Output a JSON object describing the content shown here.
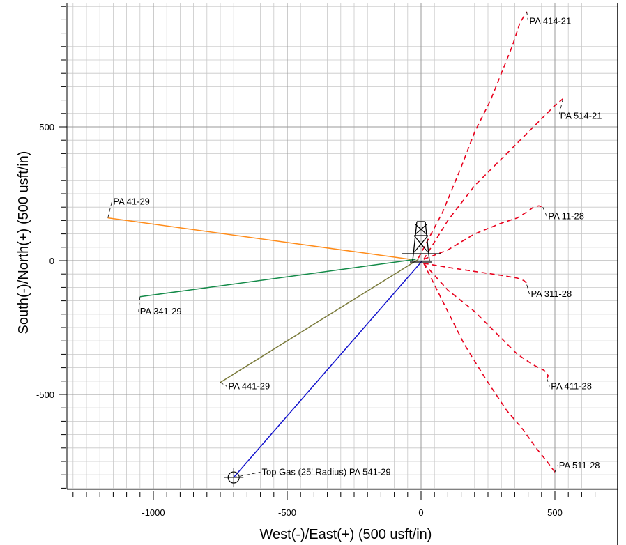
{
  "chart_data": {
    "type": "line",
    "xlabel": "West(-)/East(+) (500 usft/in)",
    "ylabel": "South(-)/North(+) (500 usft/in)",
    "xlim": [
      -1300,
      650
    ],
    "ylim": [
      -880,
      950
    ],
    "x_ticks": [
      -1000,
      -500,
      0,
      500
    ],
    "y_ticks": [
      -500,
      0,
      500
    ],
    "grid": true,
    "series": [
      {
        "name": "PA 41-29",
        "color": "#ff8c1a",
        "dashed": false,
        "x": [
          -40,
          -1170
        ],
        "y": [
          5,
          160
        ],
        "label_anchor": [
          -1170,
          160
        ],
        "label_at": [
          -1150,
          220
        ]
      },
      {
        "name": "PA 341-29",
        "color": "#138a48",
        "dashed": false,
        "x": [
          -20,
          -1050
        ],
        "y": [
          5,
          -135
        ],
        "label_anchor": [
          -1050,
          -135
        ],
        "label_at": [
          -1050,
          -190
        ]
      },
      {
        "name": "PA 441-29",
        "color": "#7a7a3a",
        "dashed": false,
        "x": [
          -10,
          -750
        ],
        "y": [
          5,
          -455
        ],
        "label_anchor": [
          -750,
          -455
        ],
        "label_at": [
          -720,
          -470
        ]
      },
      {
        "name": "Top Gas (25' Radius) PA 541-29",
        "color": "#1010cc",
        "dashed": false,
        "x": [
          5,
          -700
        ],
        "y": [
          0,
          -810
        ],
        "label_anchor": [
          -700,
          -810
        ],
        "label_at": [
          -595,
          -790
        ]
      },
      {
        "name": "PA 414-21",
        "color": "#e8001c",
        "dashed": true,
        "x": [
          -10,
          80,
          150,
          200,
          260,
          300,
          340,
          370,
          395
        ],
        "y": [
          10,
          180,
          350,
          480,
          600,
          700,
          800,
          890,
          930
        ],
        "label_anchor": [
          395,
          930
        ],
        "label_at": [
          405,
          895
        ]
      },
      {
        "name": "PA 514-21",
        "color": "#e8001c",
        "dashed": true,
        "x": [
          10,
          100,
          200,
          260,
          320,
          380,
          440,
          500,
          530
        ],
        "y": [
          5,
          150,
          280,
          340,
          400,
          460,
          520,
          580,
          605
        ],
        "label_anchor": [
          530,
          605
        ],
        "label_at": [
          520,
          540
        ]
      },
      {
        "name": "PA 11-28",
        "color": "#e8001c",
        "dashed": true,
        "x": [
          10,
          100,
          200,
          300,
          360,
          400,
          420,
          440,
          455
        ],
        "y": [
          5,
          40,
          100,
          140,
          160,
          185,
          200,
          205,
          200
        ],
        "label_anchor": [
          455,
          200
        ],
        "label_at": [
          475,
          165
        ]
      },
      {
        "name": "PA 311-28",
        "color": "#e8001c",
        "dashed": true,
        "x": [
          10,
          100,
          200,
          300,
          360,
          385,
          395,
          395
        ],
        "y": [
          -10,
          -25,
          -40,
          -55,
          -65,
          -75,
          -85,
          -90
        ],
        "label_anchor": [
          395,
          -90
        ],
        "label_at": [
          410,
          -125
        ]
      },
      {
        "name": "PA 411-28",
        "color": "#e8001c",
        "dashed": true,
        "x": [
          10,
          100,
          200,
          250,
          300,
          360,
          420,
          460,
          475,
          470
        ],
        "y": [
          -10,
          -110,
          -190,
          -240,
          -290,
          -350,
          -390,
          -410,
          -430,
          -440
        ],
        "label_anchor": [
          470,
          -440
        ],
        "label_at": [
          485,
          -470
        ]
      },
      {
        "name": "PA 511-28",
        "color": "#e8001c",
        "dashed": true,
        "x": [
          10,
          80,
          160,
          240,
          320,
          380,
          430,
          470,
          500
        ],
        "y": [
          -10,
          -150,
          -310,
          -440,
          -560,
          -630,
          -700,
          -750,
          -790
        ],
        "label_anchor": [
          500,
          -790
        ],
        "label_at": [
          515,
          -765
        ]
      }
    ],
    "marker_circle": {
      "x": -700,
      "y": -810
    }
  }
}
